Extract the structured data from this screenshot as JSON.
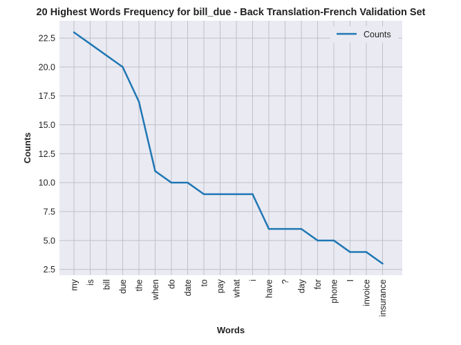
{
  "chart_data": {
    "type": "line",
    "title": "20 Highest Words Frequency for bill_due - Back Translation-French Validation Set",
    "xlabel": "Words",
    "ylabel": "Counts",
    "categories": [
      "my",
      "is",
      "bill",
      "due",
      "the",
      "when",
      "do",
      "date",
      "to",
      "pay",
      "what",
      "i",
      "have",
      "?",
      "day",
      "for",
      "phone",
      "I",
      "invoice",
      "insurance"
    ],
    "series": [
      {
        "name": "Counts",
        "values": [
          23,
          22,
          21,
          20,
          17,
          11,
          10,
          10,
          9,
          9,
          9,
          9,
          6,
          6,
          6,
          5,
          5,
          4,
          4,
          3
        ],
        "color": "#1f77b4"
      }
    ],
    "yticks": [
      "2.5",
      "5.0",
      "7.5",
      "10.0",
      "12.5",
      "15.0",
      "17.5",
      "20.0",
      "22.5"
    ],
    "ylim": [
      2,
      24
    ],
    "grid": true,
    "legend_position": "top-right",
    "background_color": "#eaeaf2",
    "grid_color": "#c0c0c8"
  }
}
